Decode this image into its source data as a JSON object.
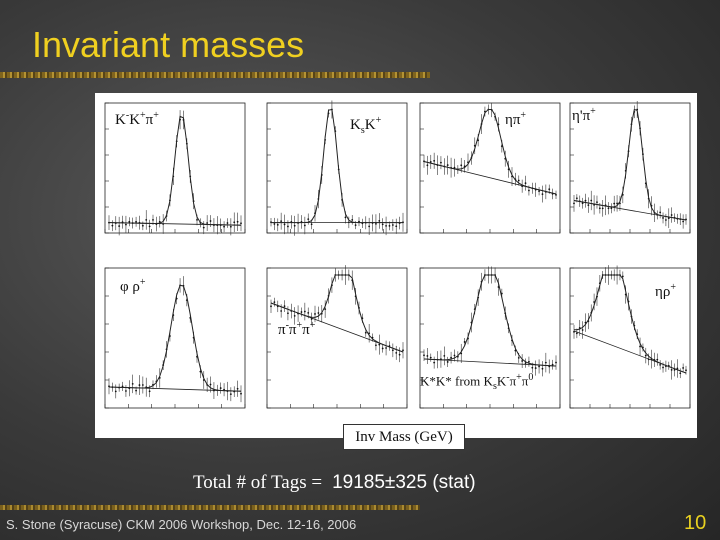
{
  "slide": {
    "title": "Invariant masses",
    "inv_mass_label": "Inv Mass (GeV)",
    "tags_label": "Total # of Tags =",
    "tags_value": "19185±325 (stat)",
    "footer": "S. Stone (Syracuse) CKM 2006 Workshop, Dec. 12-16, 2006",
    "page_number": "10",
    "accent_color": "#f0d020"
  },
  "plots": {
    "p1": {
      "main": "K",
      "sup1": "-",
      "mid": "K",
      "sup2": "+",
      "pi": "π",
      "sup3": "+"
    },
    "p2": {
      "main": "K",
      "sub": "s",
      "k": "K",
      "sup": "+"
    },
    "p3": {
      "main": "ηπ",
      "sup": "+"
    },
    "p4": {
      "main": "η",
      "prime": "'",
      "pi": "π",
      "sup": "+"
    },
    "p5": {
      "main": "φ ρ",
      "sup": "+"
    },
    "p6": {
      "main": "π",
      "s1": "-",
      "m2": "π",
      "s2": "+",
      "m3": "π",
      "s3": "+"
    },
    "p7": {
      "main": "K*K* from K",
      "sub": "s",
      "k": "K",
      "s1": "-",
      "p1": "π",
      "s2": "+",
      "p2": "π",
      "s3": "0"
    },
    "p8": {
      "main": "ηρ",
      "sup": "+"
    }
  }
}
